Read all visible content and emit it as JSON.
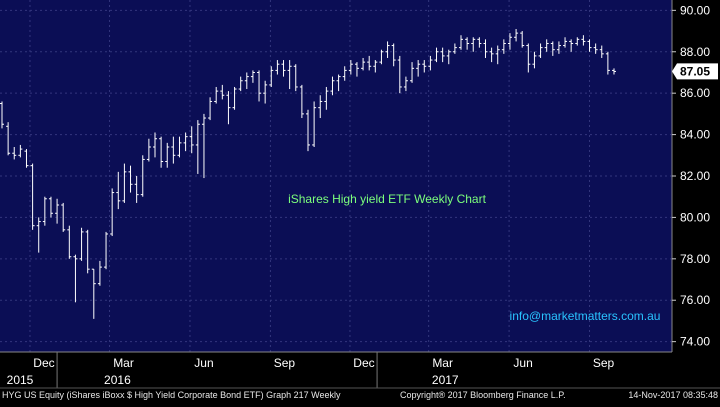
{
  "colors": {
    "plot_bg": "#0b0e55",
    "bar": "#ffffff",
    "grid": "#33367d",
    "annotation": "#7cff7c",
    "email": "#29c3ff",
    "last_price_bg": "#ffffff",
    "axis_text": "#ffffff"
  },
  "chart_data": {
    "type": "ohlc",
    "title": "iShares High yield ETF Weekly Chart",
    "contact": "info@marketmatters.com.au",
    "last_price": "87.05",
    "ylim": [
      73.5,
      90.5
    ],
    "y_ticks": [
      "74.00",
      "76.00",
      "78.00",
      "80.00",
      "82.00",
      "84.00",
      "86.00",
      "88.00",
      "90.00"
    ],
    "month_ticks": [
      "Dec",
      "Mar",
      "Jun",
      "Sep",
      "Dec",
      "Mar",
      "Jun",
      "Sep"
    ],
    "year_labels": [
      "2015",
      "2016",
      "2017"
    ],
    "x_start": "2015-10-30",
    "weeks": 107,
    "bars": [
      [
        85.5,
        85.6,
        84.3,
        84.5
      ],
      [
        84.4,
        84.6,
        83.0,
        83.1
      ],
      [
        83.1,
        83.4,
        82.8,
        83.0
      ],
      [
        83.0,
        83.5,
        82.9,
        83.3
      ],
      [
        83.2,
        83.3,
        82.4,
        82.5
      ],
      [
        82.5,
        82.6,
        79.4,
        79.6
      ],
      [
        79.6,
        80.0,
        78.3,
        79.8
      ],
      [
        79.8,
        81.0,
        79.6,
        80.9
      ],
      [
        80.9,
        81.0,
        80.0,
        80.2
      ],
      [
        80.2,
        80.9,
        79.7,
        80.6
      ],
      [
        80.6,
        80.7,
        79.3,
        79.4
      ],
      [
        79.4,
        79.6,
        78.0,
        78.1
      ],
      [
        78.1,
        78.2,
        75.9,
        78.0
      ],
      [
        78.0,
        79.5,
        77.9,
        79.3
      ],
      [
        79.3,
        79.4,
        77.3,
        77.5
      ],
      [
        77.5,
        77.5,
        75.1,
        76.8
      ],
      [
        76.8,
        77.9,
        76.7,
        77.6
      ],
      [
        77.6,
        79.3,
        77.5,
        79.2
      ],
      [
        79.2,
        81.4,
        79.1,
        81.2
      ],
      [
        81.2,
        82.2,
        80.4,
        80.8
      ],
      [
        80.8,
        82.6,
        80.7,
        82.2
      ],
      [
        82.2,
        82.5,
        81.2,
        81.6
      ],
      [
        81.6,
        82.0,
        80.7,
        81.1
      ],
      [
        81.1,
        83.0,
        81.0,
        82.8
      ],
      [
        82.8,
        83.8,
        82.7,
        83.4
      ],
      [
        83.4,
        84.1,
        82.9,
        83.8
      ],
      [
        83.8,
        83.9,
        82.4,
        82.7
      ],
      [
        82.7,
        83.6,
        82.4,
        83.4
      ],
      [
        83.4,
        83.9,
        82.6,
        83.0
      ],
      [
        83.0,
        83.9,
        82.9,
        83.6
      ],
      [
        83.6,
        84.1,
        83.2,
        83.9
      ],
      [
        83.9,
        84.4,
        83.1,
        83.5
      ],
      [
        83.5,
        84.7,
        82.1,
        84.5
      ],
      [
        84.5,
        85.0,
        81.9,
        84.8
      ],
      [
        84.8,
        85.8,
        84.7,
        85.6
      ],
      [
        85.6,
        86.3,
        85.5,
        86.1
      ],
      [
        86.1,
        86.4,
        85.7,
        85.9
      ],
      [
        85.9,
        86.1,
        84.5,
        85.3
      ],
      [
        85.3,
        86.3,
        85.2,
        86.2
      ],
      [
        86.2,
        86.8,
        86.1,
        86.6
      ],
      [
        86.6,
        87.0,
        86.2,
        86.8
      ],
      [
        86.8,
        87.1,
        86.5,
        87.0
      ],
      [
        87.0,
        87.1,
        85.6,
        86.0
      ],
      [
        86.0,
        86.6,
        85.5,
        86.4
      ],
      [
        86.4,
        87.3,
        86.3,
        87.1
      ],
      [
        87.1,
        87.6,
        86.9,
        87.4
      ],
      [
        87.4,
        87.6,
        86.8,
        87.1
      ],
      [
        87.1,
        87.6,
        86.2,
        87.3
      ],
      [
        87.3,
        87.4,
        86.1,
        86.3
      ],
      [
        86.3,
        86.4,
        84.8,
        85.0
      ],
      [
        85.0,
        85.2,
        83.2,
        83.5
      ],
      [
        83.5,
        85.6,
        83.4,
        85.3
      ],
      [
        85.3,
        85.9,
        84.8,
        85.6
      ],
      [
        85.6,
        86.3,
        85.2,
        86.1
      ],
      [
        86.1,
        86.8,
        85.9,
        86.6
      ],
      [
        86.6,
        86.9,
        86.1,
        86.8
      ],
      [
        86.8,
        87.3,
        86.6,
        87.1
      ],
      [
        87.1,
        87.6,
        86.9,
        87.4
      ],
      [
        87.4,
        87.5,
        86.8,
        87.2
      ],
      [
        87.2,
        87.7,
        87.1,
        87.5
      ],
      [
        87.5,
        87.8,
        87.1,
        87.3
      ],
      [
        87.3,
        87.6,
        87.0,
        87.5
      ],
      [
        87.5,
        88.1,
        87.4,
        88.0
      ],
      [
        88.0,
        88.5,
        87.7,
        88.3
      ],
      [
        88.3,
        88.4,
        87.3,
        87.6
      ],
      [
        87.6,
        87.8,
        86.0,
        86.3
      ],
      [
        86.3,
        86.8,
        86.1,
        86.6
      ],
      [
        86.6,
        87.5,
        86.5,
        87.2
      ],
      [
        87.2,
        87.6,
        86.8,
        87.4
      ],
      [
        87.4,
        87.6,
        87.0,
        87.3
      ],
      [
        87.3,
        87.8,
        87.1,
        87.6
      ],
      [
        87.6,
        88.2,
        87.5,
        88.0
      ],
      [
        88.0,
        88.2,
        87.5,
        87.8
      ],
      [
        87.8,
        88.1,
        87.4,
        88.0
      ],
      [
        88.0,
        88.4,
        87.9,
        88.2
      ],
      [
        88.2,
        88.8,
        88.1,
        88.6
      ],
      [
        88.6,
        88.7,
        88.1,
        88.4
      ],
      [
        88.4,
        88.7,
        88.0,
        88.6
      ],
      [
        88.6,
        88.7,
        88.2,
        88.4
      ],
      [
        88.4,
        88.6,
        87.7,
        88.0
      ],
      [
        88.0,
        88.2,
        87.5,
        87.9
      ],
      [
        87.9,
        88.3,
        87.4,
        88.1
      ],
      [
        88.1,
        88.6,
        87.9,
        88.4
      ],
      [
        88.4,
        88.9,
        88.1,
        88.7
      ],
      [
        88.7,
        89.1,
        88.5,
        88.9
      ],
      [
        88.9,
        89.0,
        88.2,
        88.3
      ],
      [
        88.3,
        88.4,
        87.0,
        87.4
      ],
      [
        87.4,
        88.0,
        87.2,
        87.8
      ],
      [
        87.8,
        88.4,
        87.7,
        88.2
      ],
      [
        88.2,
        88.6,
        88.0,
        88.4
      ],
      [
        88.4,
        88.5,
        87.8,
        88.1
      ],
      [
        88.1,
        88.5,
        87.9,
        88.3
      ],
      [
        88.3,
        88.7,
        88.2,
        88.5
      ],
      [
        88.5,
        88.6,
        88.0,
        88.4
      ],
      [
        88.4,
        88.7,
        88.3,
        88.6
      ],
      [
        88.6,
        88.8,
        88.3,
        88.5
      ],
      [
        88.5,
        88.6,
        88.0,
        88.2
      ],
      [
        88.2,
        88.4,
        87.9,
        88.1
      ],
      [
        88.1,
        88.3,
        87.7,
        87.9
      ],
      [
        87.9,
        88.0,
        86.9,
        87.1
      ],
      [
        87.1,
        87.2,
        86.9,
        87.05
      ]
    ]
  },
  "footer": {
    "left": "HYG US Equity (iShares iBoxx $ High Yield Corporate Bond ETF) Graph 217  Weekly",
    "center": "Copyright® 2017 Bloomberg Finance L.P.",
    "right": "14-Nov-2017 08:35:48"
  }
}
